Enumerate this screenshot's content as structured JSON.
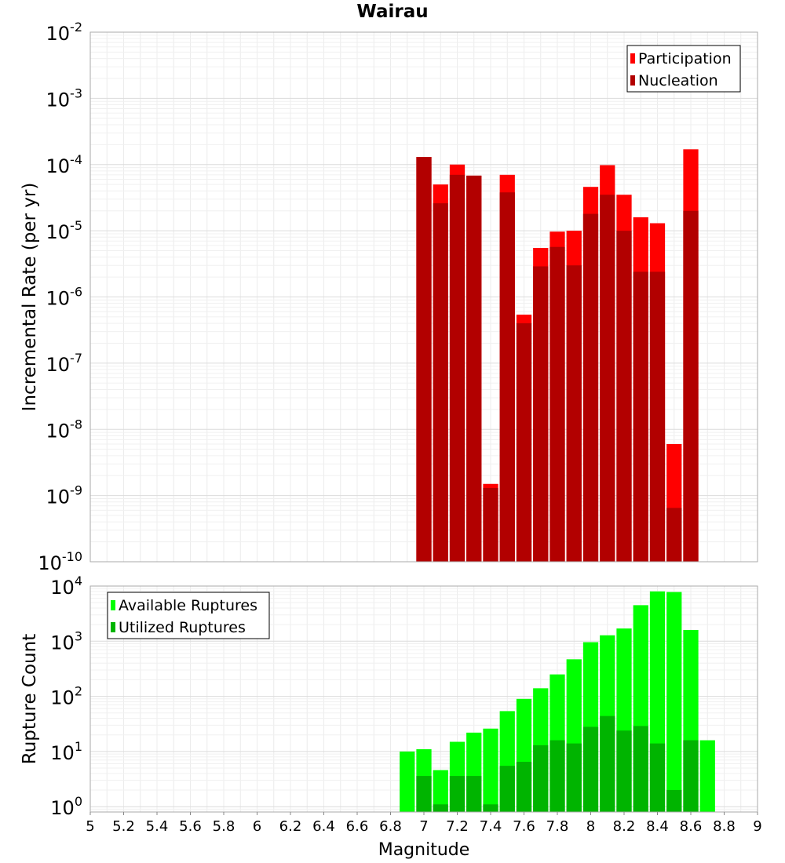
{
  "title": "Wairau",
  "chart_data": [
    {
      "type": "bar",
      "title": "Wairau",
      "xlabel": "Magnitude",
      "ylabel": "Incremental Rate (per yr)",
      "yscale": "log",
      "xlim": [
        5,
        9
      ],
      "ylim": [
        1e-10,
        0.01
      ],
      "grid": true,
      "legend_position": "top-right",
      "bar_width": 0.1,
      "x": [
        7.0,
        7.1,
        7.2,
        7.3,
        7.4,
        7.5,
        7.6,
        7.7,
        7.8,
        7.9,
        8.0,
        8.1,
        8.2,
        8.3,
        8.4,
        8.5,
        8.6
      ],
      "series": [
        {
          "name": "Participation",
          "color": "#ff0000",
          "values": [
            0.00013,
            5e-05,
            0.0001,
            6.8e-05,
            1.5e-09,
            7e-05,
            5.4e-07,
            5.5e-06,
            9.7e-06,
            1e-05,
            4.6e-05,
            9.8e-05,
            3.5e-05,
            1.6e-05,
            1.3e-05,
            6e-09,
            0.00017
          ]
        },
        {
          "name": "Nucleation",
          "color": "#b20000",
          "values": [
            0.00013,
            2.6e-05,
            7e-05,
            6.8e-05,
            1.3e-09,
            3.8e-05,
            4e-07,
            2.9e-06,
            5.7e-06,
            3e-06,
            1.8e-05,
            3.5e-05,
            1e-05,
            2.4e-06,
            2.4e-06,
            6.5e-10,
            2e-05
          ]
        }
      ],
      "y_ticks": [
        {
          "base": "10",
          "exp": "-2"
        },
        {
          "base": "10",
          "exp": "-3"
        },
        {
          "base": "10",
          "exp": "-4"
        },
        {
          "base": "10",
          "exp": "-5"
        },
        {
          "base": "10",
          "exp": "-6"
        },
        {
          "base": "10",
          "exp": "-7"
        },
        {
          "base": "10",
          "exp": "-8"
        },
        {
          "base": "10",
          "exp": "-9"
        },
        {
          "base": "10",
          "exp": "-10"
        }
      ]
    },
    {
      "type": "bar",
      "xlabel": "Magnitude",
      "ylabel": "Rupture Count",
      "yscale": "log",
      "xlim": [
        5,
        9
      ],
      "ylim": [
        0.8,
        10000
      ],
      "grid": true,
      "legend_position": "top-left",
      "bar_width": 0.1,
      "x": [
        6.9,
        7.0,
        7.1,
        7.2,
        7.3,
        7.4,
        7.5,
        7.6,
        7.7,
        7.8,
        7.9,
        8.0,
        8.1,
        8.2,
        8.3,
        8.4,
        8.5,
        8.6,
        8.7
      ],
      "series": [
        {
          "name": "Available Ruptures",
          "color": "#00ff00",
          "values": [
            10,
            11,
            4.6,
            15,
            22,
            26,
            54,
            90,
            140,
            250,
            470,
            960,
            1280,
            1700,
            4500,
            8000,
            7800,
            1600,
            16
          ]
        },
        {
          "name": "Utilized Ruptures",
          "color": "#00b400",
          "values": [
            null,
            3.6,
            1.1,
            3.6,
            3.6,
            1.1,
            5.5,
            6.5,
            13,
            16,
            14,
            28,
            44,
            24,
            29,
            14,
            2.0,
            16,
            null
          ]
        }
      ],
      "y_ticks": [
        {
          "base": "10",
          "exp": "4"
        },
        {
          "base": "10",
          "exp": "3"
        },
        {
          "base": "10",
          "exp": "2"
        },
        {
          "base": "10",
          "exp": "1"
        },
        {
          "base": "10",
          "exp": "0"
        }
      ],
      "x_ticks": [
        "5",
        "5.2",
        "5.4",
        "5.6",
        "5.8",
        "6",
        "6.2",
        "6.4",
        "6.6",
        "6.8",
        "7",
        "7.2",
        "7.4",
        "7.6",
        "7.8",
        "8",
        "8.2",
        "8.4",
        "8.6",
        "8.8",
        "9"
      ]
    }
  ]
}
